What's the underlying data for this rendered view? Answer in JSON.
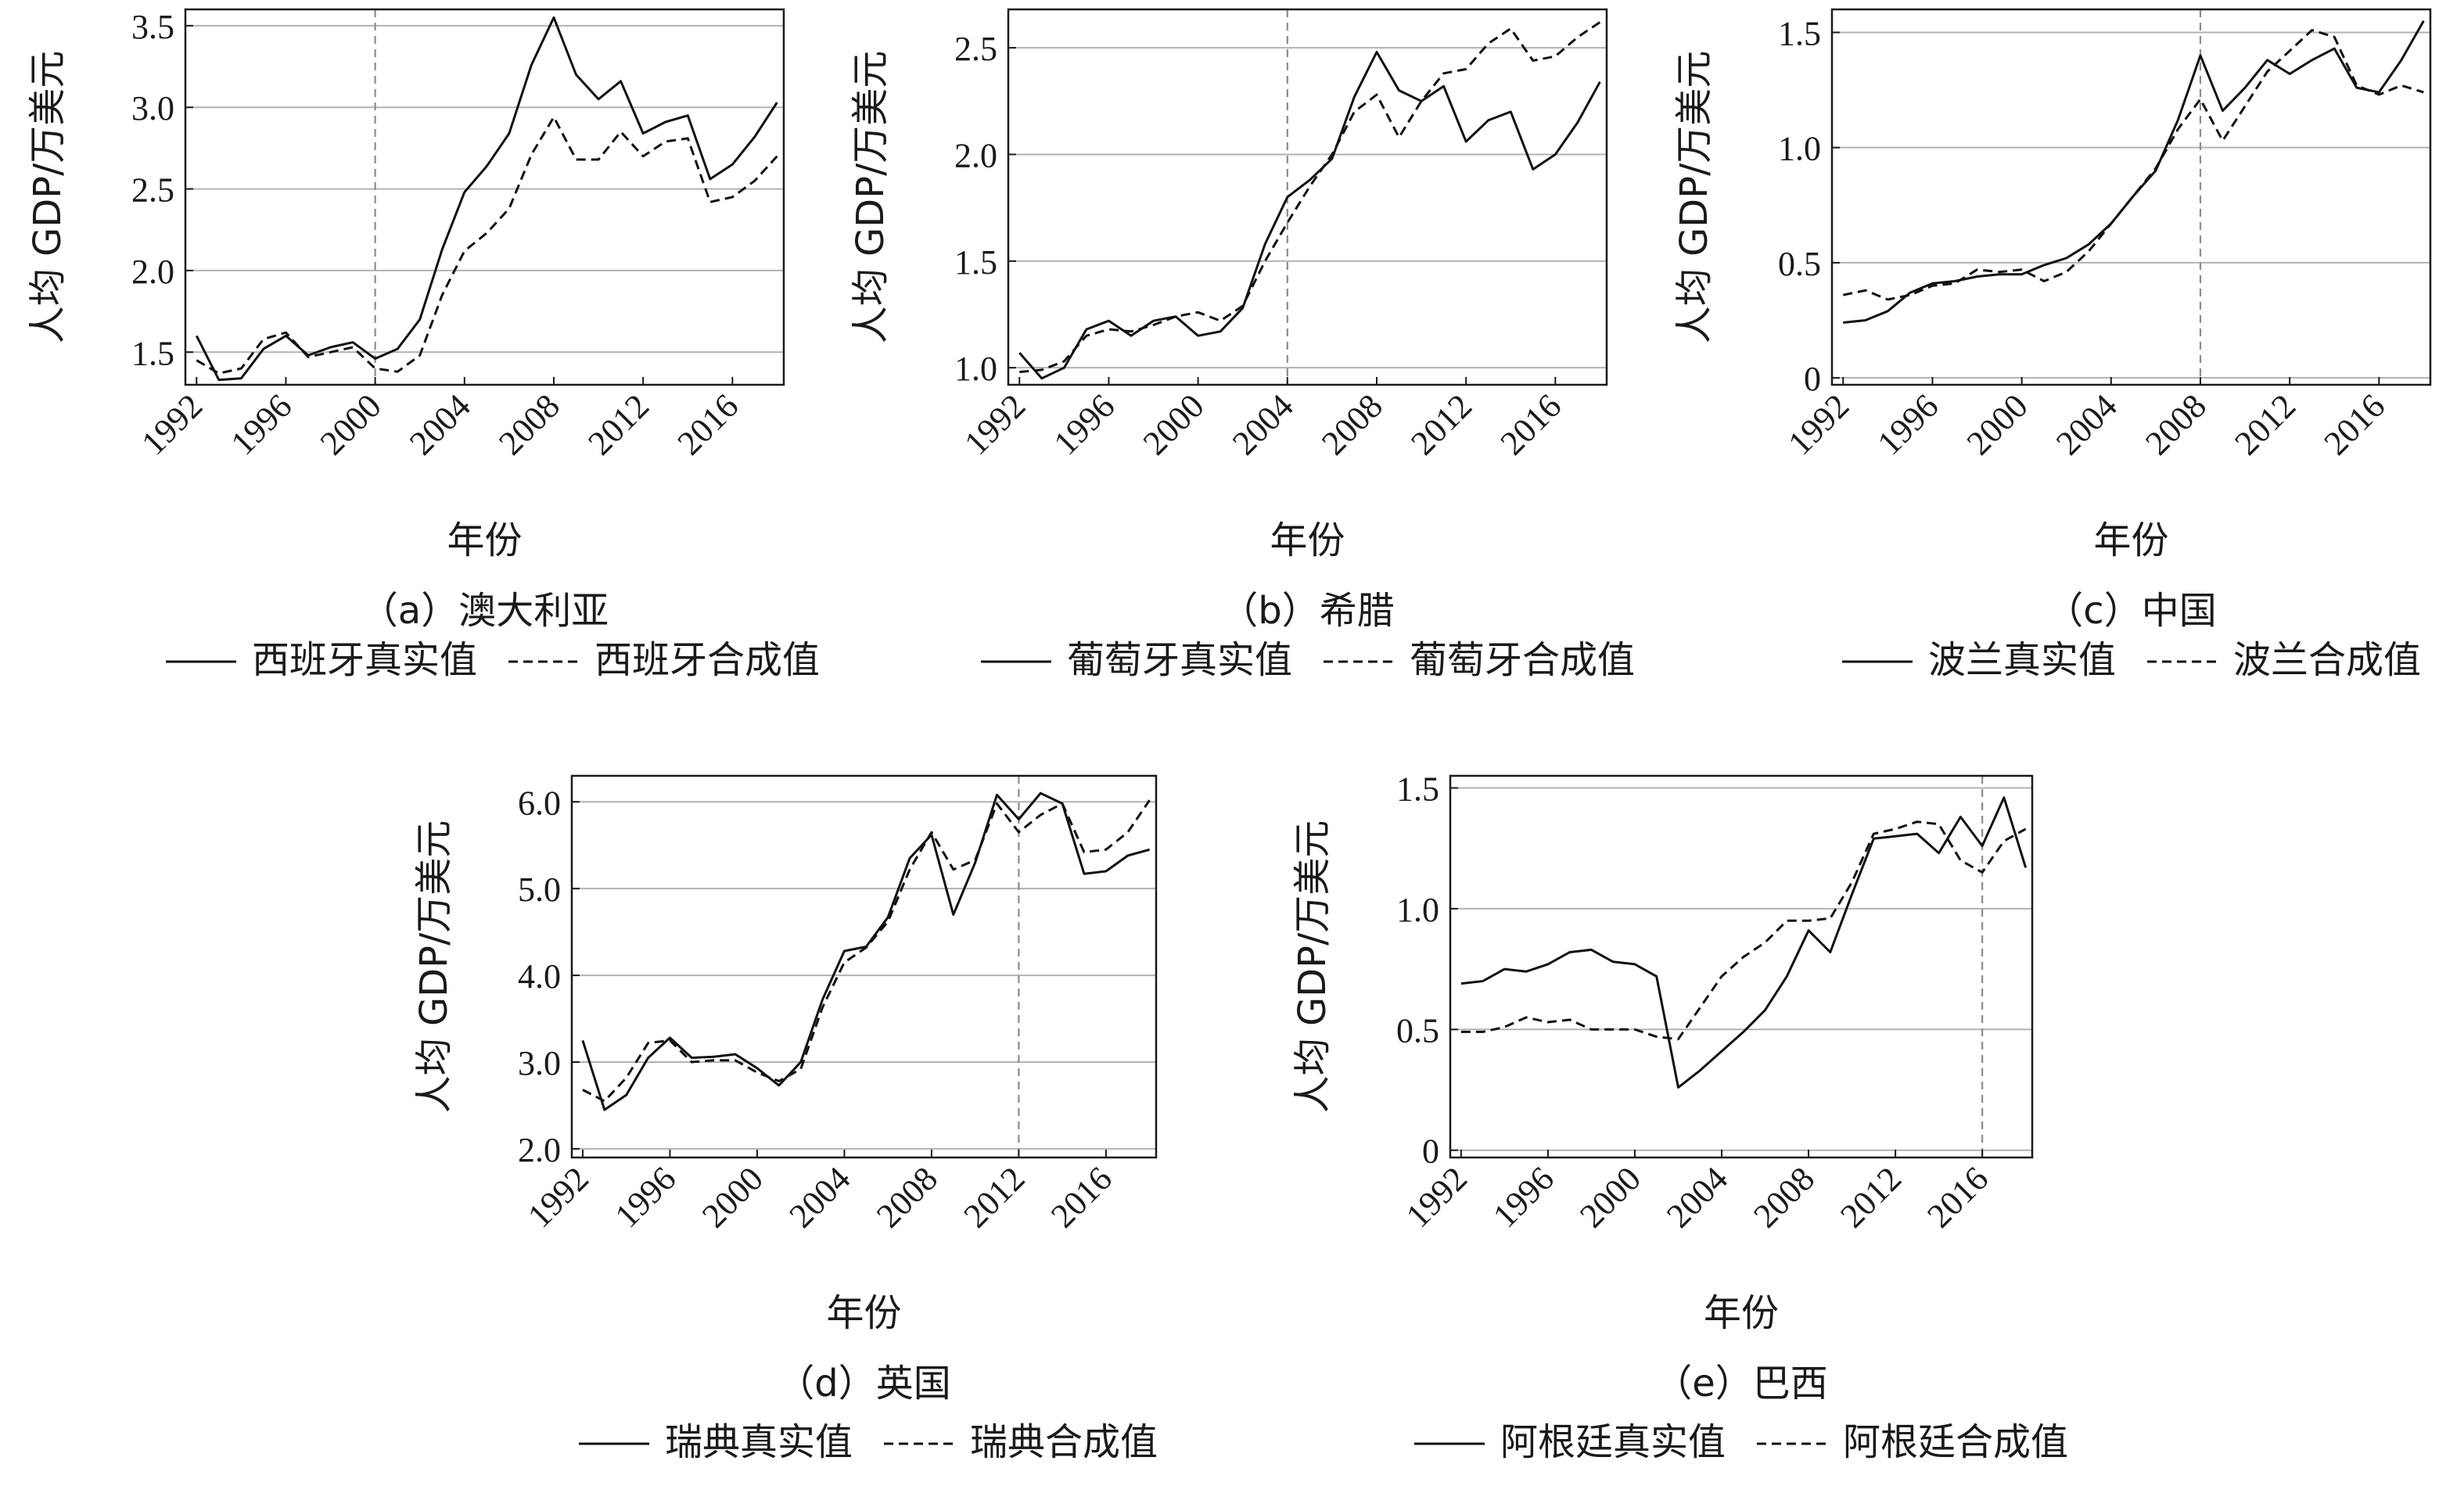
{
  "figure": {
    "y_axis_label": "人均 GDP/万美元",
    "x_axis_label": "年份"
  },
  "chart_data": [
    {
      "type": "line",
      "caption": "（a）澳大利亚",
      "ylim": [
        1.3,
        3.6
      ],
      "yticks": [
        1.5,
        2.0,
        2.5,
        3.0,
        3.5
      ],
      "ytick_labels": [
        "1.5",
        "2.0",
        "2.5",
        "3.0",
        "3.5"
      ],
      "xlim": [
        1991.5,
        2018.3
      ],
      "xticks": [
        1992,
        1996,
        2000,
        2004,
        2008,
        2012,
        2016
      ],
      "xtick_labels": [
        "1992",
        "1996",
        "2000",
        "2004",
        "2008",
        "2012",
        "2016"
      ],
      "grid": "horizontal",
      "vline": 2000,
      "legend": [
        "西班牙真实值",
        "西班牙合成值"
      ],
      "x": [
        1992,
        1993,
        1994,
        1995,
        1996,
        1997,
        1998,
        1999,
        2000,
        2001,
        2002,
        2003,
        2004,
        2005,
        2006,
        2007,
        2008,
        2009,
        2010,
        2011,
        2012,
        2013,
        2014,
        2015,
        2016,
        2017,
        2018
      ],
      "series": [
        {
          "name": "西班牙真实值",
          "style": "solid",
          "values": [
            1.6,
            1.33,
            1.34,
            1.52,
            1.6,
            1.48,
            1.53,
            1.56,
            1.46,
            1.52,
            1.7,
            2.13,
            2.48,
            2.64,
            2.84,
            3.26,
            3.55,
            3.2,
            3.05,
            3.16,
            2.84,
            2.91,
            2.95,
            2.56,
            2.65,
            2.82,
            3.03
          ]
        },
        {
          "name": "西班牙合成值",
          "style": "dashed",
          "values": [
            1.45,
            1.37,
            1.4,
            1.58,
            1.62,
            1.47,
            1.5,
            1.53,
            1.4,
            1.38,
            1.48,
            1.85,
            2.12,
            2.23,
            2.38,
            2.71,
            2.94,
            2.68,
            2.68,
            2.85,
            2.7,
            2.79,
            2.81,
            2.42,
            2.45,
            2.55,
            2.7
          ]
        }
      ]
    },
    {
      "type": "line",
      "caption": "（b）希腊",
      "ylim": [
        0.92,
        2.68
      ],
      "yticks": [
        1.0,
        1.5,
        2.0,
        2.5
      ],
      "ytick_labels": [
        "1.0",
        "1.5",
        "2.0",
        "2.5"
      ],
      "xlim": [
        1991.5,
        2018.3
      ],
      "xticks": [
        1992,
        1996,
        2000,
        2004,
        2008,
        2012,
        2016
      ],
      "xtick_labels": [
        "1992",
        "1996",
        "2000",
        "2004",
        "2008",
        "2012",
        "2016"
      ],
      "grid": "horizontal",
      "vline": 2004,
      "legend": [
        "葡萄牙真实值",
        "葡萄牙合成值"
      ],
      "x": [
        1992,
        1993,
        1994,
        1995,
        1996,
        1997,
        1998,
        1999,
        2000,
        2001,
        2002,
        2003,
        2004,
        2005,
        2006,
        2007,
        2008,
        2009,
        2010,
        2011,
        2012,
        2013,
        2014,
        2015,
        2016,
        2017,
        2018
      ],
      "series": [
        {
          "name": "葡萄牙真实值",
          "style": "solid",
          "values": [
            1.07,
            0.95,
            1.0,
            1.18,
            1.22,
            1.15,
            1.22,
            1.24,
            1.15,
            1.17,
            1.28,
            1.58,
            1.8,
            1.88,
            1.98,
            2.27,
            2.48,
            2.3,
            2.25,
            2.32,
            2.06,
            2.16,
            2.2,
            1.93,
            2.0,
            2.15,
            2.34
          ]
        },
        {
          "name": "葡萄牙合成值",
          "style": "dashed",
          "values": [
            0.98,
            0.99,
            1.03,
            1.15,
            1.18,
            1.17,
            1.2,
            1.24,
            1.26,
            1.22,
            1.29,
            1.5,
            1.68,
            1.85,
            2.0,
            2.2,
            2.28,
            2.08,
            2.25,
            2.38,
            2.4,
            2.52,
            2.59,
            2.44,
            2.46,
            2.55,
            2.62
          ]
        }
      ]
    },
    {
      "type": "line",
      "caption": "（c）中国",
      "ylim": [
        -0.03,
        1.6
      ],
      "yticks": [
        0,
        0.5,
        1.0,
        1.5
      ],
      "ytick_labels": [
        "0",
        "0.5",
        "1.0",
        "1.5"
      ],
      "xlim": [
        1991.5,
        2018.3
      ],
      "xticks": [
        1992,
        1996,
        2000,
        2004,
        2008,
        2012,
        2016
      ],
      "xtick_labels": [
        "1992",
        "1996",
        "2000",
        "2004",
        "2008",
        "2012",
        "2016"
      ],
      "grid": "horizontal",
      "vline": 2008,
      "legend": [
        "波兰真实值",
        "波兰合成值"
      ],
      "x": [
        1992,
        1993,
        1994,
        1995,
        1996,
        1997,
        1998,
        1999,
        2000,
        2001,
        2002,
        2003,
        2004,
        2005,
        2006,
        2007,
        2008,
        2009,
        2010,
        2011,
        2012,
        2013,
        2014,
        2015,
        2016,
        2017,
        2018
      ],
      "series": [
        {
          "name": "波兰真实值",
          "style": "solid",
          "values": [
            0.24,
            0.25,
            0.29,
            0.37,
            0.41,
            0.42,
            0.44,
            0.45,
            0.45,
            0.49,
            0.52,
            0.58,
            0.67,
            0.79,
            0.9,
            1.12,
            1.4,
            1.16,
            1.26,
            1.38,
            1.32,
            1.38,
            1.43,
            1.26,
            1.24,
            1.38,
            1.55
          ]
        },
        {
          "name": "波兰合成值",
          "style": "dashed",
          "values": [
            0.36,
            0.38,
            0.34,
            0.36,
            0.4,
            0.41,
            0.47,
            0.46,
            0.47,
            0.42,
            0.46,
            0.55,
            0.67,
            0.79,
            0.91,
            1.08,
            1.21,
            1.03,
            1.18,
            1.33,
            1.42,
            1.51,
            1.48,
            1.27,
            1.23,
            1.27,
            1.24
          ]
        }
      ]
    },
    {
      "type": "line",
      "caption": "（d）英国",
      "ylim": [
        1.9,
        6.3
      ],
      "yticks": [
        2.0,
        3.0,
        4.0,
        5.0,
        6.0
      ],
      "ytick_labels": [
        "2.0",
        "3.0",
        "4.0",
        "5.0",
        "6.0"
      ],
      "xlim": [
        1991.5,
        2018.3
      ],
      "xticks": [
        1992,
        1996,
        2000,
        2004,
        2008,
        2012,
        2016
      ],
      "xtick_labels": [
        "1992",
        "1996",
        "2000",
        "2004",
        "2008",
        "2012",
        "2016"
      ],
      "grid": "horizontal",
      "vline": 2012,
      "legend": [
        "瑞典真实值",
        "瑞典合成值"
      ],
      "x": [
        1992,
        1993,
        1994,
        1995,
        1996,
        1997,
        1998,
        1999,
        2000,
        2001,
        2002,
        2003,
        2004,
        2005,
        2006,
        2007,
        2008,
        2009,
        2010,
        2011,
        2012,
        2013,
        2014,
        2015,
        2016,
        2017,
        2018
      ],
      "series": [
        {
          "name": "瑞典真实值",
          "style": "solid",
          "values": [
            3.25,
            2.45,
            2.62,
            3.05,
            3.28,
            3.05,
            3.06,
            3.09,
            2.93,
            2.73,
            3.0,
            3.72,
            4.28,
            4.33,
            4.67,
            5.35,
            5.62,
            4.7,
            5.3,
            6.08,
            5.8,
            6.1,
            5.98,
            5.17,
            5.2,
            5.38,
            5.45
          ]
        },
        {
          "name": "瑞典合成值",
          "style": "dashed",
          "values": [
            2.68,
            2.55,
            2.82,
            3.22,
            3.25,
            3.0,
            3.02,
            3.02,
            2.88,
            2.78,
            2.92,
            3.63,
            4.15,
            4.32,
            4.62,
            5.22,
            5.65,
            5.22,
            5.33,
            5.98,
            5.65,
            5.85,
            5.98,
            5.42,
            5.45,
            5.65,
            6.02
          ]
        }
      ]
    },
    {
      "type": "line",
      "caption": "（e）巴西",
      "ylim": [
        -0.03,
        1.55
      ],
      "yticks": [
        0,
        0.5,
        1.0,
        1.5
      ],
      "ytick_labels": [
        "0",
        "0.5",
        "1.0",
        "1.5"
      ],
      "xlim": [
        1991.5,
        2018.3
      ],
      "xticks": [
        1992,
        1996,
        2000,
        2004,
        2008,
        2012,
        2016
      ],
      "xtick_labels": [
        "1992",
        "1996",
        "2000",
        "2004",
        "2008",
        "2012",
        "2016"
      ],
      "grid": "horizontal",
      "vline": 2016,
      "legend": [
        "阿根廷真实值",
        "阿根廷合成值"
      ],
      "x": [
        1992,
        1993,
        1994,
        1995,
        1996,
        1997,
        1998,
        1999,
        2000,
        2001,
        2002,
        2003,
        2004,
        2005,
        2006,
        2007,
        2008,
        2009,
        2010,
        2011,
        2012,
        2013,
        2014,
        2015,
        2016,
        2017,
        2018
      ],
      "series": [
        {
          "name": "阿根廷真实值",
          "style": "solid",
          "values": [
            0.69,
            0.7,
            0.75,
            0.74,
            0.77,
            0.82,
            0.83,
            0.78,
            0.77,
            0.72,
            0.26,
            0.33,
            0.41,
            0.49,
            0.58,
            0.72,
            0.91,
            0.82,
            1.06,
            1.29,
            1.3,
            1.31,
            1.23,
            1.38,
            1.26,
            1.46,
            1.17
          ]
        },
        {
          "name": "阿根廷合成值",
          "style": "dashed",
          "values": [
            0.49,
            0.49,
            0.51,
            0.55,
            0.53,
            0.54,
            0.5,
            0.5,
            0.5,
            0.47,
            0.46,
            0.59,
            0.72,
            0.8,
            0.86,
            0.95,
            0.95,
            0.96,
            1.11,
            1.31,
            1.33,
            1.36,
            1.35,
            1.2,
            1.15,
            1.28,
            1.33
          ]
        }
      ]
    }
  ]
}
